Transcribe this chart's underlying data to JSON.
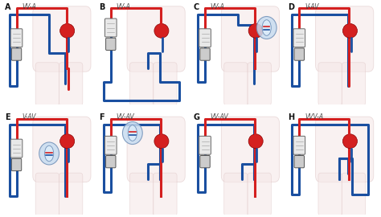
{
  "background_color": "#ffffff",
  "panels": [
    {
      "id": "A",
      "label": "VV-A",
      "row": 0,
      "col": 0
    },
    {
      "id": "B",
      "label": "VV-A",
      "row": 0,
      "col": 1
    },
    {
      "id": "C",
      "label": "VV-A",
      "row": 0,
      "col": 2
    },
    {
      "id": "D",
      "label": "V-AV",
      "row": 0,
      "col": 3
    },
    {
      "id": "E",
      "label": "V-AV",
      "row": 1,
      "col": 0
    },
    {
      "id": "F",
      "label": "VV-AV",
      "row": 1,
      "col": 1
    },
    {
      "id": "G",
      "label": "VV-AV",
      "row": 1,
      "col": 2
    },
    {
      "id": "H",
      "label": "VVV-A",
      "row": 1,
      "col": 3
    }
  ],
  "blue": "#1a4fa0",
  "red": "#d42020",
  "body_fill": "#f5e8e8",
  "body_edge": "#e0c8c8",
  "heart_fill": "#d42020",
  "heart_edge": "#8b0000",
  "dev_top_fill": "#e8e8e8",
  "dev_top_edge": "#666666",
  "dev_bot_fill": "#cccccc",
  "dev_bot_edge": "#555555",
  "circ_fill": "#c8dcf0",
  "circ_edge": "#7090b8",
  "lw": 2.2,
  "lw_thin": 1.0,
  "figwidth": 4.74,
  "figheight": 2.7,
  "dpi": 100
}
